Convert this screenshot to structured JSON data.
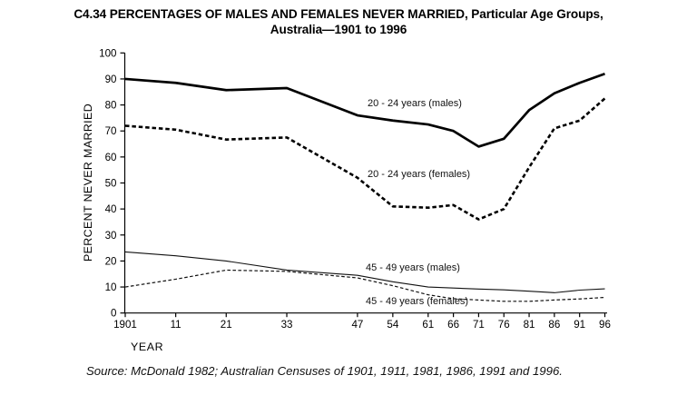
{
  "title_line1": "C4.34 PERCENTAGES OF MALES AND FEMALES NEVER MARRIED, Particular Age Groups,",
  "title_line2": "Australia—1901 to 1996",
  "y_axis_title": "PERCENT NEVER MARRIED",
  "x_axis_title": "YEAR",
  "source_note": "Source: McDonald 1982; Australian Censuses of 1901, 1911, 1981, 1986, 1991 and 1996.",
  "colors": {
    "line": "#000000",
    "text": "#000000",
    "background": "#ffffff"
  },
  "chart_data": {
    "type": "line",
    "title": "C4.34 PERCENTAGES OF MALES AND FEMALES NEVER MARRIED, Particular Age Groups, Australia—1901 to 1996",
    "xlabel": "YEAR",
    "ylabel": "PERCENT NEVER MARRIED",
    "ylim": [
      0,
      100
    ],
    "grid": false,
    "legend_position": "inline-labels",
    "x": [
      1901,
      1911,
      1921,
      1933,
      1947,
      1954,
      1961,
      1966,
      1971,
      1976,
      1981,
      1986,
      1991,
      1996
    ],
    "x_tick_labels": [
      "1901",
      "11",
      "21",
      "33",
      "47",
      "54",
      "61",
      "66",
      "71",
      "76",
      "81",
      "86",
      "91",
      "96"
    ],
    "y_ticks": [
      0,
      10,
      20,
      30,
      40,
      50,
      60,
      70,
      80,
      90,
      100
    ],
    "series": [
      {
        "name": "20 - 24 years (males)",
        "line": "thick-solid",
        "values": [
          90,
          88.5,
          85.7,
          86.5,
          76,
          74,
          72.5,
          70,
          64,
          67,
          78,
          84.5,
          88.5,
          92
        ]
      },
      {
        "name": "20 - 24 years (females)",
        "line": "thick-dashed",
        "values": [
          72,
          70.5,
          66.7,
          67.5,
          52,
          41,
          40.5,
          41.5,
          36,
          40,
          56,
          71,
          74,
          82.5
        ]
      },
      {
        "name": "45 - 49 years (males)",
        "line": "thin-solid",
        "values": [
          23.5,
          22,
          20,
          16.5,
          14.5,
          12,
          10,
          9.6,
          9.2,
          8.9,
          8.4,
          7.8,
          8.8,
          9.3
        ]
      },
      {
        "name": "45 - 49 years (females)",
        "line": "thin-dashed",
        "values": [
          10,
          13,
          16.5,
          16,
          13.5,
          10.5,
          7,
          5.5,
          5,
          4.5,
          4.5,
          5,
          5.4,
          6
        ]
      }
    ]
  }
}
